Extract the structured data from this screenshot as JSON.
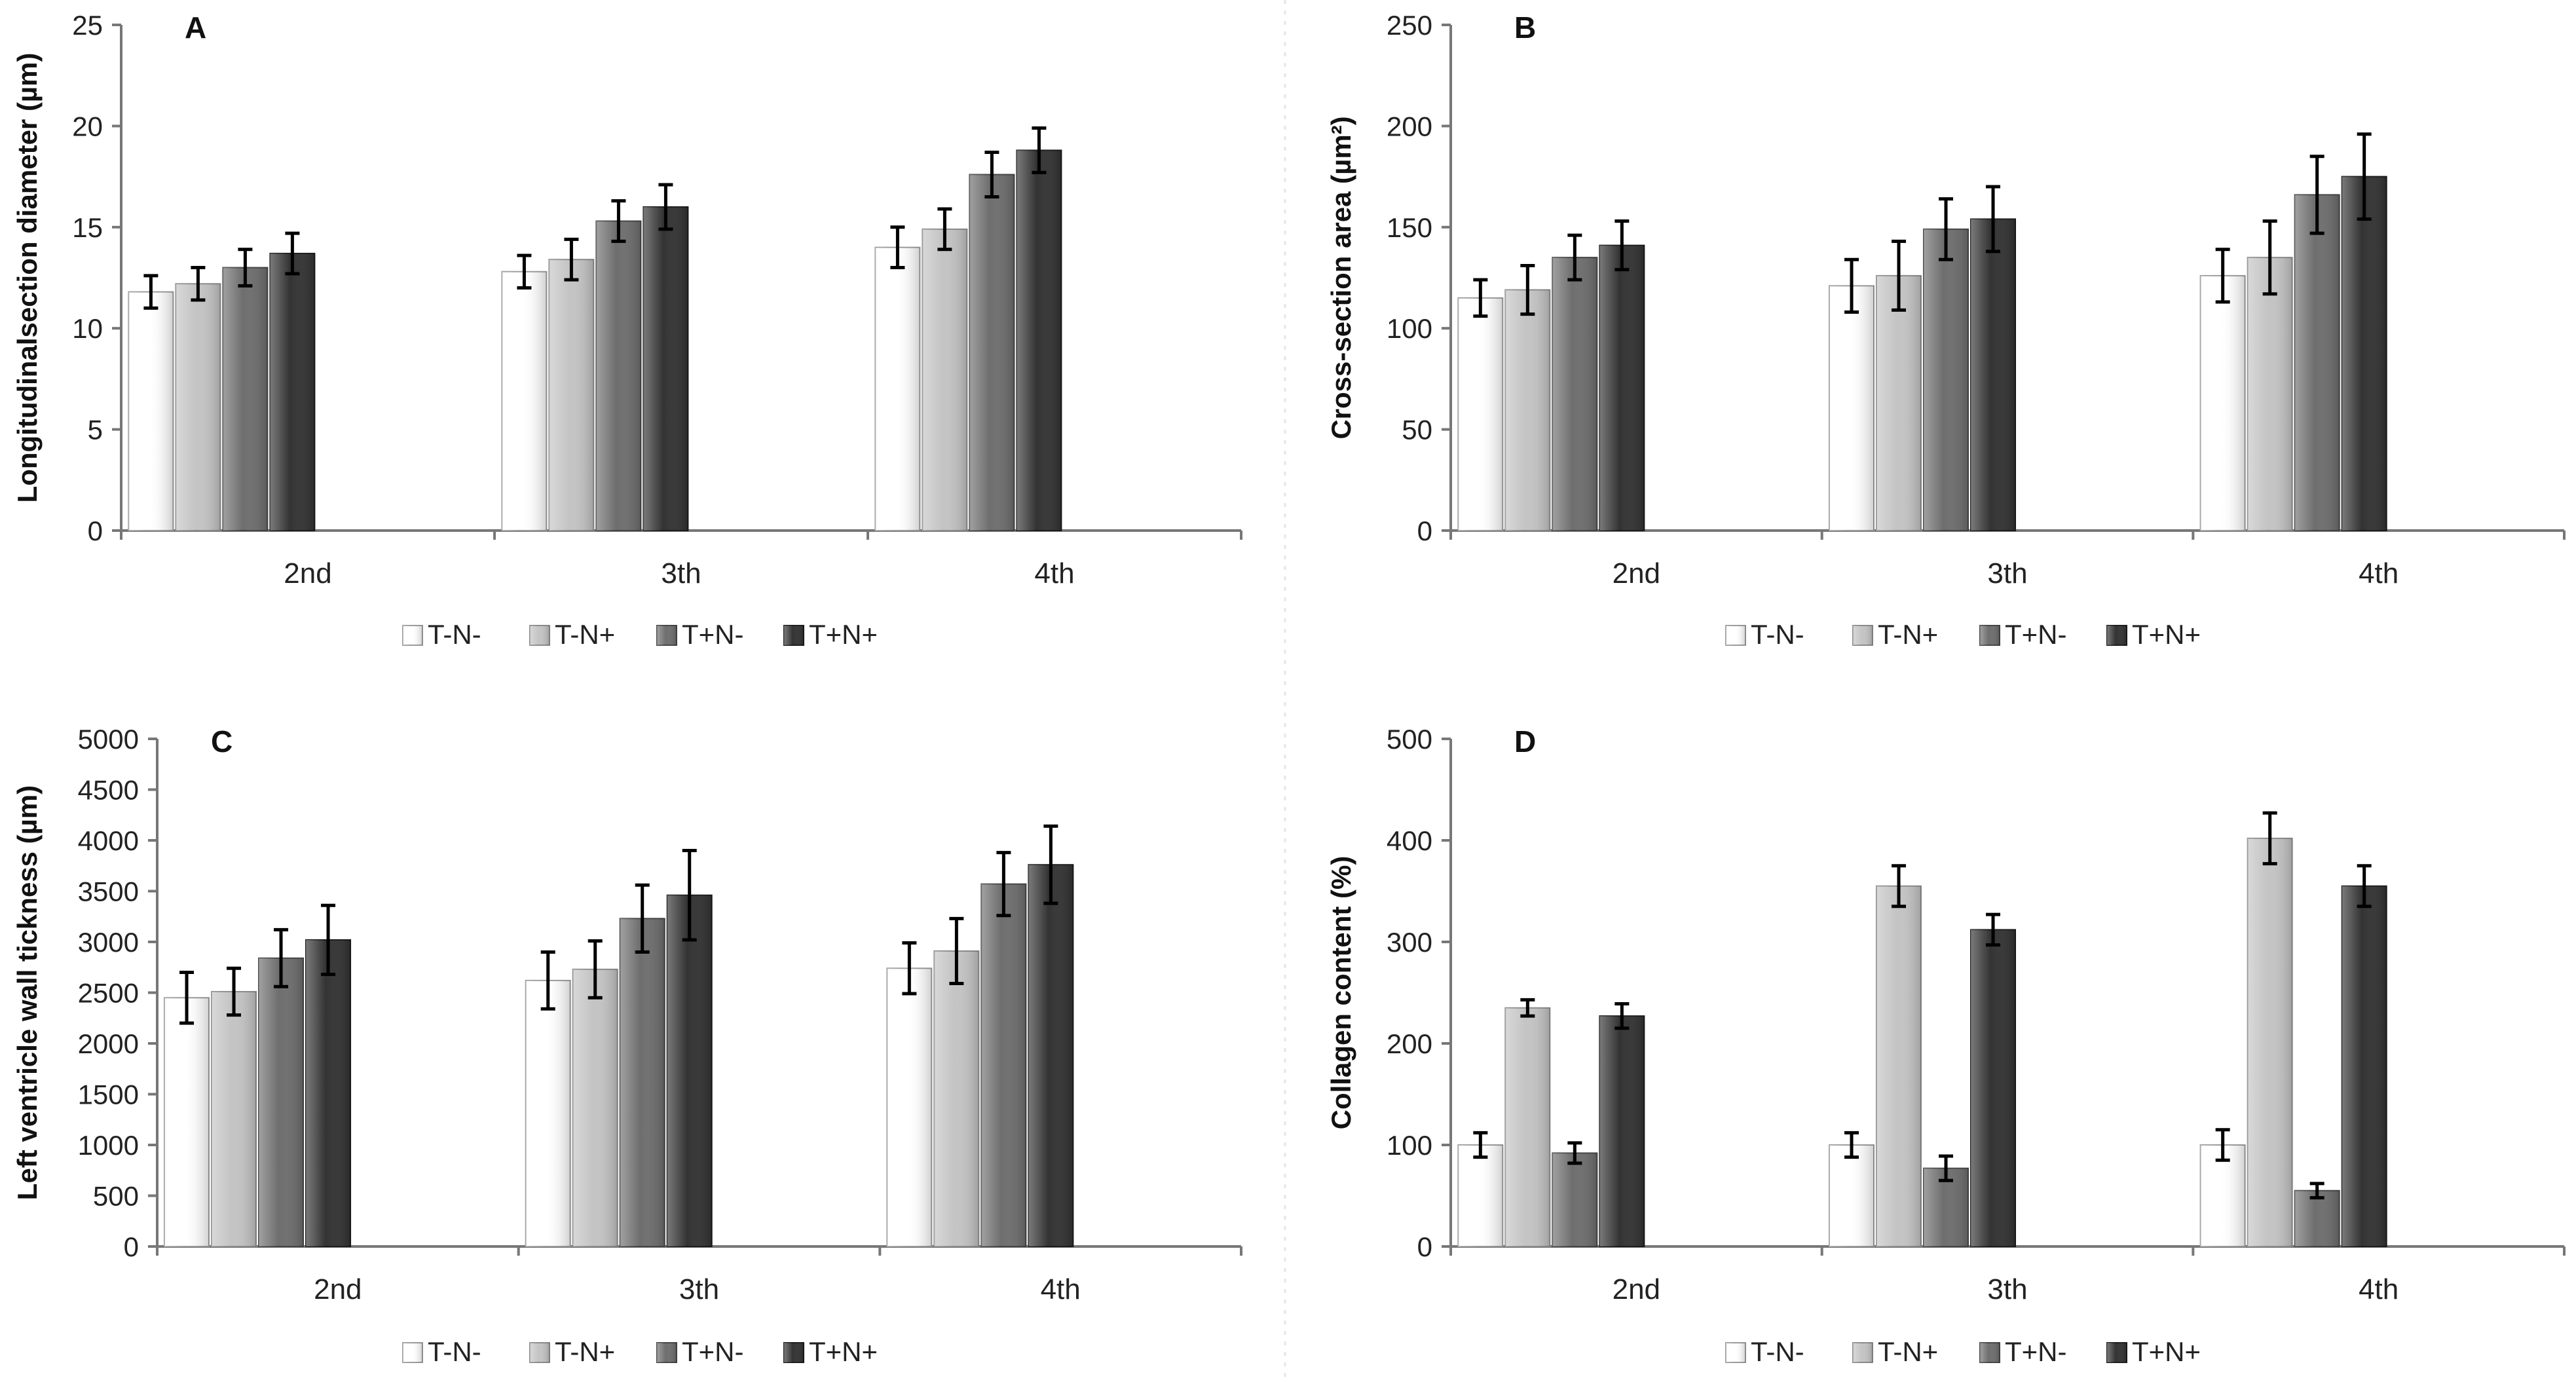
{
  "legend": [
    "T-N-",
    "T-N+",
    "T+N-",
    "T+N+"
  ],
  "series_colors": [
    "#ffffff",
    "#c4c4c4",
    "#6e6e6e",
    "#333333"
  ],
  "chart_data": [
    {
      "type": "bar",
      "panel": "A",
      "title": "A",
      "ylabel": "Longitudinalsection diameter (µm)",
      "categories": [
        "2nd",
        "3th",
        "4th"
      ],
      "ylim": [
        0,
        25
      ],
      "yticks": [
        0,
        5,
        10,
        15,
        20,
        25
      ],
      "series": [
        {
          "name": "T-N-",
          "values": [
            11.8,
            12.8,
            14.0
          ],
          "errors": [
            0.8,
            0.8,
            1.0
          ]
        },
        {
          "name": "T-N+",
          "values": [
            12.2,
            13.4,
            14.9
          ],
          "errors": [
            0.8,
            1.0,
            1.0
          ]
        },
        {
          "name": "T+N-",
          "values": [
            13.0,
            15.3,
            17.6
          ],
          "errors": [
            0.9,
            1.0,
            1.1
          ]
        },
        {
          "name": "T+N+",
          "values": [
            13.7,
            16.0,
            18.8
          ],
          "errors": [
            1.0,
            1.1,
            1.1
          ]
        }
      ]
    },
    {
      "type": "bar",
      "panel": "B",
      "title": "B",
      "ylabel": "Cross-section area (µm²)",
      "categories": [
        "2nd",
        "3th",
        "4th"
      ],
      "ylim": [
        0,
        250
      ],
      "yticks": [
        0,
        50,
        100,
        150,
        200,
        250
      ],
      "series": [
        {
          "name": "T-N-",
          "values": [
            115,
            121,
            126
          ],
          "errors": [
            9,
            13,
            13
          ]
        },
        {
          "name": "T-N+",
          "values": [
            119,
            126,
            135
          ],
          "errors": [
            12,
            17,
            18
          ]
        },
        {
          "name": "T+N-",
          "values": [
            135,
            149,
            166
          ],
          "errors": [
            11,
            15,
            19
          ]
        },
        {
          "name": "T+N+",
          "values": [
            141,
            154,
            175
          ],
          "errors": [
            12,
            16,
            21
          ]
        }
      ]
    },
    {
      "type": "bar",
      "panel": "C",
      "title": "C",
      "ylabel": "Left ventricle wall tickness (µm)",
      "categories": [
        "2nd",
        "3th",
        "4th"
      ],
      "ylim": [
        0,
        5000
      ],
      "yticks": [
        0,
        500,
        1000,
        1500,
        2000,
        2500,
        3000,
        3500,
        4000,
        4500,
        5000
      ],
      "series": [
        {
          "name": "T-N-",
          "values": [
            2450,
            2620,
            2740
          ],
          "errors": [
            250,
            280,
            250
          ]
        },
        {
          "name": "T-N+",
          "values": [
            2510,
            2730,
            2910
          ],
          "errors": [
            230,
            280,
            320
          ]
        },
        {
          "name": "T+N-",
          "values": [
            2840,
            3230,
            3570
          ],
          "errors": [
            280,
            330,
            310
          ]
        },
        {
          "name": "T+N+",
          "values": [
            3020,
            3460,
            3760
          ],
          "errors": [
            340,
            440,
            380
          ]
        }
      ]
    },
    {
      "type": "bar",
      "panel": "D",
      "title": "D",
      "ylabel": "Collagen content (%)",
      "categories": [
        "2nd",
        "3th",
        "4th"
      ],
      "ylim": [
        0,
        500
      ],
      "yticks": [
        0,
        100,
        200,
        300,
        400,
        500
      ],
      "series": [
        {
          "name": "T-N-",
          "values": [
            100,
            100,
            100
          ],
          "errors": [
            12,
            12,
            15
          ]
        },
        {
          "name": "T-N+",
          "values": [
            235,
            355,
            402
          ],
          "errors": [
            8,
            20,
            25
          ]
        },
        {
          "name": "T+N-",
          "values": [
            92,
            77,
            55
          ],
          "errors": [
            10,
            12,
            7
          ]
        },
        {
          "name": "T+N+",
          "values": [
            227,
            312,
            355
          ],
          "errors": [
            12,
            15,
            20
          ]
        }
      ]
    }
  ]
}
